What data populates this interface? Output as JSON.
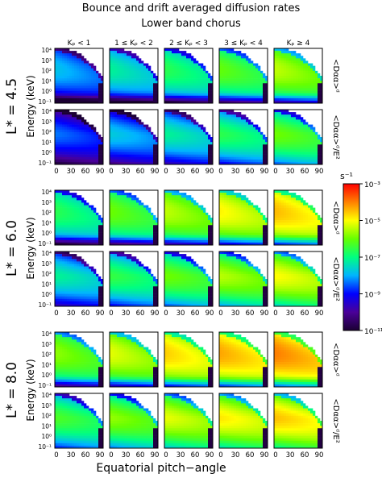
{
  "title": "Bounce and drift averaged diffusion rates",
  "subtitle": "Lower band chorus",
  "column_headers": [
    "Kₚ < 1",
    "1 ≤ Kₚ < 2",
    "2 ≤ Kₚ < 3",
    "3 ≤ Kₚ < 4",
    "Kₚ ≥ 4"
  ],
  "row_quantities": [
    "<Dαα>ᵈ",
    "<Dαα>ᵈ/E²"
  ],
  "colorbar": {
    "unit": "s⁻¹",
    "tick_labels": [
      "10⁻³",
      "10⁻⁵",
      "10⁻⁷",
      "10⁻⁹",
      "10⁻¹¹"
    ]
  },
  "colors": [
    "#1b0033",
    "#4a0099",
    "#0000ff",
    "#00b4ff",
    "#00ff80",
    "#66ff00",
    "#ffff00",
    "#ff8000",
    "#ff0000"
  ],
  "chart_data": {
    "type": "heatmap",
    "title": "Bounce and drift averaged diffusion rates",
    "subtitle": "Lower band chorus",
    "xlabel": "Equatorial pitch−angle",
    "ylabel": "Energy (keV)",
    "x_tick_labels": [
      "0",
      "30",
      "60",
      "90"
    ],
    "y_tick_labels": [
      "10⁻¹",
      "10⁰",
      "10¹",
      "10²",
      "10³",
      "10⁴"
    ],
    "xlim": [
      0,
      90
    ],
    "ylim_log10": [
      -1,
      4
    ],
    "color_scale": "log",
    "color_range": [
      1e-11,
      0.001
    ],
    "groups": [
      {
        "label": "L* = 4.5",
        "intensity": [
          0.4,
          0.48,
          0.55,
          0.62,
          0.7
        ]
      },
      {
        "label": "L* = 6.0",
        "intensity": [
          0.55,
          0.63,
          0.7,
          0.76,
          0.82
        ]
      },
      {
        "label": "L* = 8.0",
        "intensity": [
          0.66,
          0.73,
          0.8,
          0.84,
          0.88
        ]
      }
    ]
  }
}
